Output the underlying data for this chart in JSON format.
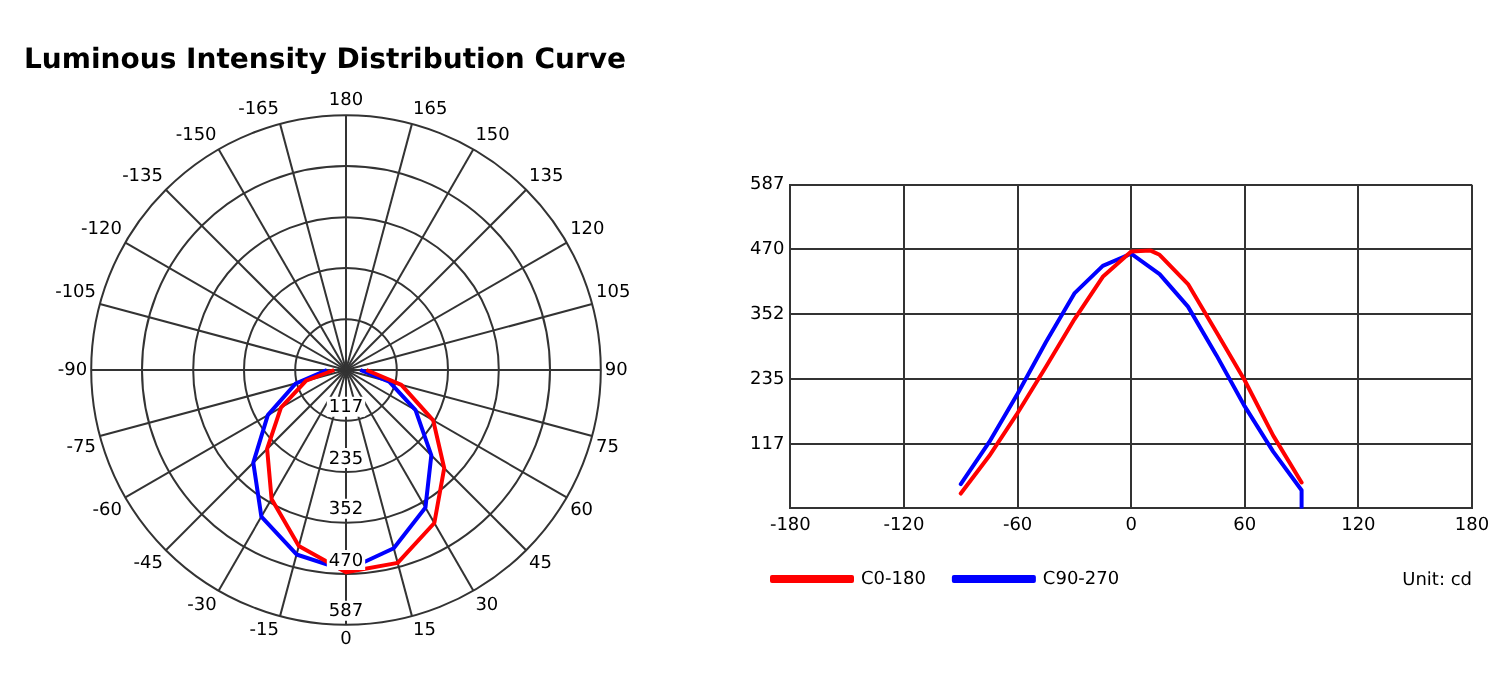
{
  "chart_data": [
    {
      "type": "radar",
      "title": "Luminous Intensity Distribution Curve",
      "categories": [
        "180",
        "165",
        "150",
        "135",
        "120",
        "105",
        "90",
        "75",
        "60",
        "45",
        "30",
        "15",
        "0",
        "-15",
        "-30",
        "-45",
        "-60",
        "-75",
        "-90",
        "-105",
        "-120",
        "-135",
        "-150",
        "-165"
      ],
      "series": [
        {
          "color": "#ff0000",
          "values": [
            null,
            null,
            null,
            null,
            null,
            null,
            47,
            132,
            232,
            320,
            407,
            460,
            466,
            420,
            343,
            257,
            173,
            95,
            27,
            null,
            null,
            null,
            null,
            null
          ]
        },
        {
          "color": "#0000ff",
          "values": [
            null,
            null,
            null,
            null,
            null,
            null,
            33,
            103,
            185,
            278,
            366,
            425,
            462,
            440,
            390,
            302,
            208,
            120,
            44,
            null,
            null,
            null,
            null,
            null
          ]
        }
      ],
      "ylim": [
        0,
        587
      ],
      "yticks": [
        117,
        235,
        352,
        470,
        587
      ],
      "grid": true,
      "legend": false,
      "marker": "none"
    },
    {
      "type": "line",
      "series": [
        {
          "name": "C0-180",
          "color": "#ff0000",
          "x": [
            -90,
            -75,
            -60,
            -45,
            -30,
            -15,
            0,
            10,
            15,
            30,
            45,
            60,
            75,
            90
          ],
          "values": [
            27,
            95,
            173,
            257,
            343,
            420,
            466,
            468,
            460,
            407,
            320,
            232,
            132,
            47
          ]
        },
        {
          "name": "C90-270",
          "color": "#0000ff",
          "x": [
            -90,
            -75,
            -60,
            -45,
            -30,
            -15,
            0,
            15,
            30,
            45,
            60,
            75,
            90,
            90
          ],
          "values": [
            44,
            120,
            208,
            302,
            390,
            440,
            462,
            425,
            366,
            278,
            185,
            103,
            33,
            0
          ]
        }
      ],
      "xlim": [
        -180,
        180
      ],
      "xticks": [
        -180,
        -120,
        -60,
        0,
        60,
        120,
        180
      ],
      "ylim": [
        0,
        587
      ],
      "yticks": [
        {
          "value": 0,
          "label": null
        },
        117,
        235,
        352,
        470,
        587
      ],
      "grid": true,
      "legend": "bottom left",
      "marker": "none",
      "annotations": [
        "Unit: cd"
      ]
    }
  ]
}
